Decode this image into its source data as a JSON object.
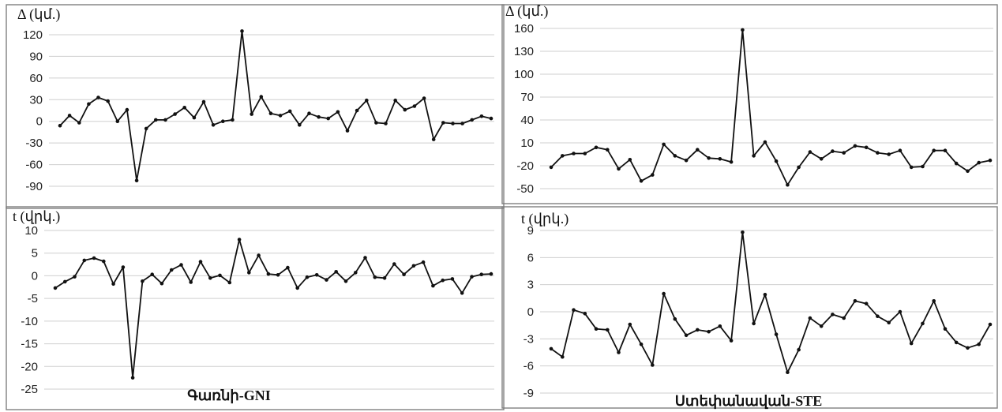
{
  "chart_data": [
    {
      "type": "line",
      "ylabel": "Δ (կմ.)",
      "xlabel": "",
      "yticks": [
        120,
        90,
        60,
        30,
        0,
        -30,
        -60,
        -90
      ],
      "ylim": [
        -90,
        135
      ],
      "values": [
        -6,
        8,
        -2,
        24,
        33,
        28,
        0,
        16,
        -82,
        -10,
        2,
        2,
        10,
        19,
        5,
        27,
        -5,
        0,
        2,
        125,
        10,
        34,
        11,
        8,
        14,
        -5,
        11,
        6,
        4,
        13,
        -13,
        15,
        29,
        -2,
        -3,
        29,
        16,
        21,
        32,
        -25,
        -2,
        -3,
        -3,
        2,
        7,
        4
      ],
      "grid": "horizontal",
      "caption": ""
    },
    {
      "type": "line",
      "ylabel": "Δ (կմ.)",
      "xlabel": "",
      "yticks": [
        160,
        130,
        100,
        70,
        40,
        10,
        -20,
        -50
      ],
      "ylim": [
        -50,
        160
      ],
      "values": [
        -22,
        -7,
        -4,
        -4,
        4,
        1,
        -24,
        -12,
        -40,
        -32,
        8,
        -7,
        -13,
        1,
        -10,
        -11,
        -15,
        158,
        -7,
        11,
        -14,
        -45,
        -22,
        -2,
        -11,
        -1,
        -3,
        6,
        4,
        -3,
        -5,
        0,
        -22,
        -21,
        0,
        0,
        -17,
        -27,
        -16,
        -13
      ],
      "grid": "horizontal",
      "caption": ""
    },
    {
      "type": "line",
      "ylabel": "t (վրկ.)",
      "xlabel": "",
      "yticks": [
        10,
        5,
        0,
        -5,
        -10,
        -15,
        -20,
        -25
      ],
      "ylim": [
        -25,
        10
      ],
      "values": [
        -2.7,
        -1.3,
        -0.2,
        3.4,
        3.9,
        3.2,
        -1.8,
        1.9,
        -22.5,
        -1.2,
        0.3,
        -1.7,
        1.3,
        2.4,
        -1.4,
        3.1,
        -0.5,
        0.1,
        -1.5,
        8,
        0.7,
        4.5,
        0.4,
        0.2,
        1.8,
        -2.7,
        -0.3,
        0.2,
        -0.9,
        0.9,
        -1.2,
        0.7,
        4,
        -0.3,
        -0.5,
        2.6,
        0.3,
        2.2,
        3,
        -2.2,
        -1,
        -0.7,
        -3.8,
        -0.2,
        0.3,
        0.4
      ],
      "grid": "horizontal",
      "caption": "Գառնի-GNI"
    },
    {
      "type": "line",
      "ylabel": "t (վրկ.)",
      "xlabel": "",
      "yticks": [
        9,
        6,
        3,
        0,
        -3,
        -6,
        -9
      ],
      "ylim": [
        -9,
        9
      ],
      "values": [
        -4.1,
        -5,
        0.2,
        -0.2,
        -1.9,
        -2,
        -4.5,
        -1.4,
        -3.6,
        -5.9,
        2,
        -0.8,
        -2.6,
        -2,
        -2.2,
        -1.6,
        -3.2,
        8.8,
        -1.3,
        1.9,
        -2.5,
        -6.7,
        -4.2,
        -0.7,
        -1.6,
        -0.3,
        -0.7,
        1.2,
        0.9,
        -0.5,
        -1.2,
        0,
        -3.5,
        -1.3,
        1.2,
        -1.9,
        -3.4,
        -4,
        -3.6,
        -1.4
      ],
      "grid": "horizontal",
      "caption": "Ստեփանավան-STE"
    }
  ]
}
